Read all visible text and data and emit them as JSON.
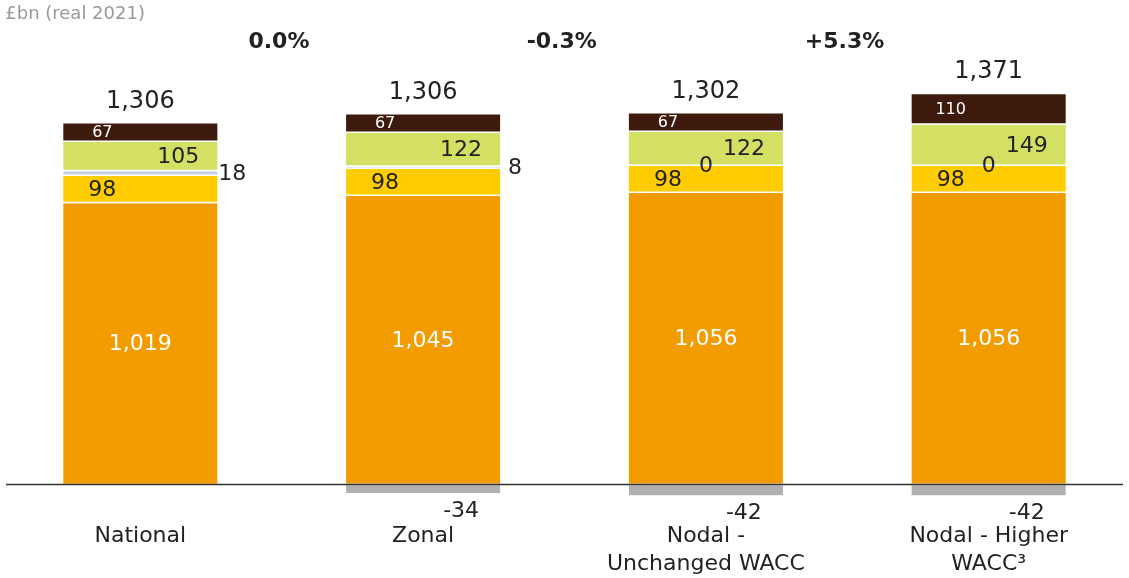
{
  "chart_data": {
    "type": "bar",
    "stacked": true,
    "ylabel": "£bn (real 2021)",
    "categories": [
      "National",
      "Zonal",
      "Nodal - Unchanged WACC",
      "Nodal - Higher WACC³"
    ],
    "series": [
      {
        "color": "#f39c00",
        "values": [
          1019,
          1045,
          1056,
          1056
        ],
        "value_labels": [
          "1,019",
          "1,045",
          "1,056",
          "1,056"
        ]
      },
      {
        "color": "#ffcc00",
        "values": [
          98,
          98,
          98,
          98
        ],
        "value_labels": [
          "98",
          "98",
          "98",
          "98"
        ]
      },
      {
        "color": "#c5d0e3",
        "values": [
          18,
          8,
          0,
          0
        ],
        "value_labels": [
          "18",
          "8",
          "0",
          "0"
        ]
      },
      {
        "color": "#d4e063",
        "values": [
          105,
          122,
          122,
          149
        ],
        "value_labels": [
          "105",
          "122",
          "122",
          "149"
        ]
      },
      {
        "color": "#3e1a0c",
        "values": [
          67,
          67,
          67,
          110
        ],
        "value_labels": [
          "67",
          "67",
          "67",
          "110"
        ]
      },
      {
        "color": "#b0b0b0",
        "values": [
          null,
          -34,
          -42,
          -42
        ],
        "value_labels": [
          null,
          "-34",
          "-42",
          "-42"
        ]
      }
    ],
    "totals": [
      "1,306",
      "1,306",
      "1,302",
      "1,371"
    ],
    "annotations": [
      "0.0%",
      "-0.3%",
      "+5.3%"
    ]
  }
}
